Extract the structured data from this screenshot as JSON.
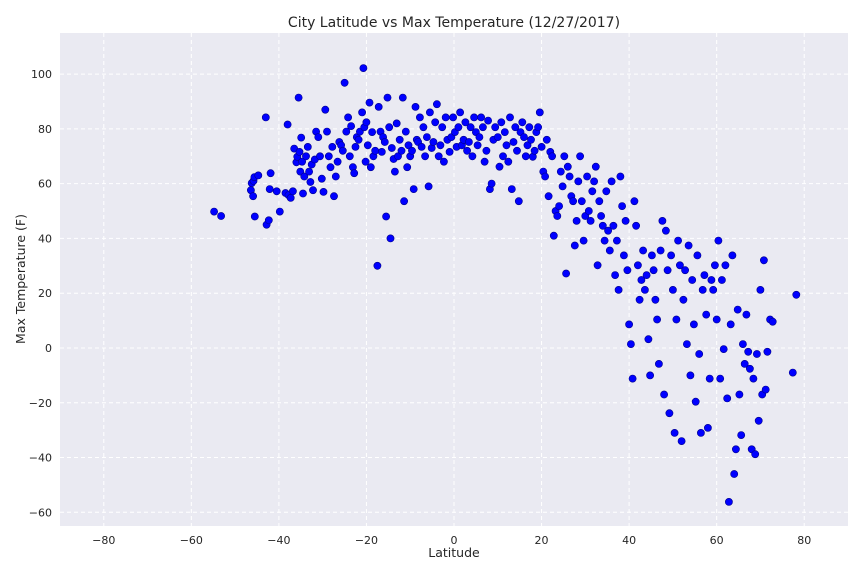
{
  "chart_data": {
    "type": "scatter",
    "title": "City Latitude vs Max Temperature (12/27/2017)",
    "xlabel": "Latitude",
    "ylabel": "Max Temperature (F)",
    "xlim": [
      -90,
      90
    ],
    "ylim": [
      -65,
      115
    ],
    "xticks": [
      -80,
      -60,
      -40,
      -20,
      0,
      20,
      40,
      60,
      80
    ],
    "yticks": [
      -60,
      -40,
      -20,
      0,
      20,
      40,
      60,
      80,
      100
    ],
    "grid": true,
    "colors": {
      "background": "#eaeaf2",
      "marker": "#0000ff",
      "marker_edge": "#00008b",
      "grid": "#ffffff"
    },
    "series": [
      {
        "points": [
          [
            -54.8,
            49.8
          ],
          [
            -53.2,
            48.2
          ],
          [
            -46.4,
            57.6
          ],
          [
            -46.2,
            60.2
          ],
          [
            -45.8,
            61.0
          ],
          [
            -45.6,
            62.4
          ],
          [
            -45.9,
            55.4
          ],
          [
            -45.5,
            48.0
          ],
          [
            -44.7,
            63.0
          ],
          [
            -43.0,
            84.2
          ],
          [
            -42.8,
            45.0
          ],
          [
            -42.3,
            46.6
          ],
          [
            -42.1,
            58.0
          ],
          [
            -41.9,
            63.8
          ],
          [
            -40.5,
            57.2
          ],
          [
            -39.8,
            49.8
          ],
          [
            -38.5,
            56.6
          ],
          [
            -38.0,
            81.6
          ],
          [
            -37.8,
            55.8
          ],
          [
            -37.3,
            54.8
          ],
          [
            -36.8,
            57.2
          ],
          [
            -36.5,
            72.8
          ],
          [
            -36.0,
            67.8
          ],
          [
            -35.8,
            69.8
          ],
          [
            -35.5,
            91.4
          ],
          [
            -35.3,
            71.6
          ],
          [
            -35.1,
            64.4
          ],
          [
            -34.9,
            76.8
          ],
          [
            -34.7,
            68.0
          ],
          [
            -34.5,
            56.4
          ],
          [
            -34.2,
            62.6
          ],
          [
            -33.8,
            70.0
          ],
          [
            -33.4,
            73.4
          ],
          [
            -33.1,
            64.4
          ],
          [
            -32.8,
            60.6
          ],
          [
            -32.5,
            67.0
          ],
          [
            -32.2,
            57.6
          ],
          [
            -31.8,
            68.8
          ],
          [
            -31.5,
            79.0
          ],
          [
            -31.0,
            77.0
          ],
          [
            -30.6,
            70.0
          ],
          [
            -30.2,
            61.8
          ],
          [
            -29.8,
            57.0
          ],
          [
            -29.4,
            87.0
          ],
          [
            -29.0,
            79.0
          ],
          [
            -28.6,
            70.0
          ],
          [
            -28.2,
            66.0
          ],
          [
            -27.8,
            73.4
          ],
          [
            -27.4,
            55.4
          ],
          [
            -27.0,
            62.6
          ],
          [
            -26.6,
            68.0
          ],
          [
            -26.2,
            75.2
          ],
          [
            -25.8,
            74.0
          ],
          [
            -25.4,
            72.0
          ],
          [
            -25.0,
            96.8
          ],
          [
            -24.6,
            79.0
          ],
          [
            -24.2,
            84.2
          ],
          [
            -23.8,
            70.0
          ],
          [
            -23.5,
            81.0
          ],
          [
            -23.1,
            66.0
          ],
          [
            -22.8,
            63.8
          ],
          [
            -22.5,
            73.4
          ],
          [
            -22.2,
            77.0
          ],
          [
            -21.8,
            76.0
          ],
          [
            -21.5,
            79.0
          ],
          [
            -21.0,
            86.0
          ],
          [
            -20.7,
            102.2
          ],
          [
            -20.5,
            80.6
          ],
          [
            -20.2,
            68.0
          ],
          [
            -20.0,
            82.4
          ],
          [
            -19.7,
            74.0
          ],
          [
            -19.3,
            89.6
          ],
          [
            -19.0,
            66.0
          ],
          [
            -18.7,
            78.8
          ],
          [
            -18.4,
            70.0
          ],
          [
            -18.0,
            72.0
          ],
          [
            -17.5,
            30.0
          ],
          [
            -17.2,
            88.0
          ],
          [
            -16.8,
            79.0
          ],
          [
            -16.5,
            71.6
          ],
          [
            -16.2,
            77.0
          ],
          [
            -15.8,
            75.2
          ],
          [
            -15.5,
            48.0
          ],
          [
            -15.2,
            91.4
          ],
          [
            -14.8,
            80.6
          ],
          [
            -14.5,
            40.0
          ],
          [
            -14.2,
            73.0
          ],
          [
            -13.8,
            69.0
          ],
          [
            -13.5,
            64.4
          ],
          [
            -13.1,
            82.0
          ],
          [
            -12.8,
            70.0
          ],
          [
            -12.4,
            76.0
          ],
          [
            -12.0,
            72.0
          ],
          [
            -11.7,
            91.4
          ],
          [
            -11.4,
            53.6
          ],
          [
            -11.0,
            79.0
          ],
          [
            -10.7,
            66.0
          ],
          [
            -10.4,
            74.0
          ],
          [
            -10.0,
            70.0
          ],
          [
            -9.6,
            72.0
          ],
          [
            -9.2,
            58.0
          ],
          [
            -8.8,
            88.0
          ],
          [
            -8.5,
            76.0
          ],
          [
            -8.2,
            75.2
          ],
          [
            -7.8,
            84.2
          ],
          [
            -7.4,
            73.4
          ],
          [
            -7.0,
            80.6
          ],
          [
            -6.6,
            70.0
          ],
          [
            -6.2,
            77.0
          ],
          [
            -5.8,
            59.0
          ],
          [
            -5.5,
            86.0
          ],
          [
            -5.1,
            73.0
          ],
          [
            -4.7,
            75.2
          ],
          [
            -4.3,
            82.4
          ],
          [
            -3.9,
            89.0
          ],
          [
            -3.5,
            70.0
          ],
          [
            -3.1,
            74.0
          ],
          [
            -2.7,
            80.6
          ],
          [
            -2.3,
            68.0
          ],
          [
            -1.9,
            84.2
          ],
          [
            -1.5,
            76.0
          ],
          [
            -1.0,
            71.6
          ],
          [
            -0.6,
            77.0
          ],
          [
            -0.2,
            84.2
          ],
          [
            0.2,
            78.8
          ],
          [
            0.6,
            73.4
          ],
          [
            1.0,
            80.6
          ],
          [
            1.4,
            86.0
          ],
          [
            1.8,
            74.0
          ],
          [
            2.2,
            76.0
          ],
          [
            2.6,
            82.4
          ],
          [
            3.0,
            72.0
          ],
          [
            3.4,
            75.2
          ],
          [
            3.8,
            80.6
          ],
          [
            4.2,
            70.0
          ],
          [
            4.6,
            84.2
          ],
          [
            5.0,
            78.8
          ],
          [
            5.4,
            74.0
          ],
          [
            5.8,
            77.0
          ],
          [
            6.2,
            84.2
          ],
          [
            6.6,
            80.6
          ],
          [
            7.0,
            68.0
          ],
          [
            7.4,
            72.0
          ],
          [
            7.8,
            83.0
          ],
          [
            8.2,
            58.0
          ],
          [
            8.6,
            60.0
          ],
          [
            9.0,
            76.0
          ],
          [
            9.4,
            80.6
          ],
          [
            10.0,
            77.0
          ],
          [
            10.4,
            66.2
          ],
          [
            10.8,
            82.4
          ],
          [
            11.2,
            70.0
          ],
          [
            11.6,
            78.8
          ],
          [
            12.0,
            74.0
          ],
          [
            12.4,
            68.0
          ],
          [
            12.8,
            84.2
          ],
          [
            13.2,
            58.0
          ],
          [
            13.6,
            75.2
          ],
          [
            14.0,
            80.6
          ],
          [
            14.4,
            72.0
          ],
          [
            14.8,
            53.6
          ],
          [
            15.2,
            78.8
          ],
          [
            15.6,
            82.4
          ],
          [
            16.0,
            77.0
          ],
          [
            16.4,
            70.0
          ],
          [
            16.8,
            74.0
          ],
          [
            17.2,
            80.6
          ],
          [
            17.6,
            76.0
          ],
          [
            18.0,
            69.8
          ],
          [
            18.4,
            72.0
          ],
          [
            18.8,
            78.8
          ],
          [
            19.2,
            80.6
          ],
          [
            19.6,
            86.0
          ],
          [
            20.0,
            73.4
          ],
          [
            20.4,
            64.4
          ],
          [
            20.8,
            62.6
          ],
          [
            21.2,
            76.0
          ],
          [
            21.6,
            55.4
          ],
          [
            22.0,
            71.6
          ],
          [
            22.4,
            70.0
          ],
          [
            22.8,
            41.0
          ],
          [
            23.2,
            50.0
          ],
          [
            23.6,
            48.2
          ],
          [
            24.0,
            51.8
          ],
          [
            24.4,
            64.4
          ],
          [
            24.8,
            59.0
          ],
          [
            25.2,
            70.0
          ],
          [
            25.6,
            27.2
          ],
          [
            26.0,
            66.2
          ],
          [
            26.4,
            62.6
          ],
          [
            26.8,
            55.4
          ],
          [
            27.2,
            53.6
          ],
          [
            27.6,
            37.4
          ],
          [
            28.0,
            46.4
          ],
          [
            28.4,
            60.8
          ],
          [
            28.8,
            70.0
          ],
          [
            29.2,
            53.6
          ],
          [
            29.6,
            39.2
          ],
          [
            30.0,
            48.2
          ],
          [
            30.4,
            62.6
          ],
          [
            30.8,
            50.0
          ],
          [
            31.2,
            46.4
          ],
          [
            31.6,
            57.2
          ],
          [
            32.0,
            60.8
          ],
          [
            32.4,
            66.2
          ],
          [
            32.8,
            30.2
          ],
          [
            33.2,
            53.6
          ],
          [
            33.6,
            48.2
          ],
          [
            34.0,
            44.6
          ],
          [
            34.4,
            39.2
          ],
          [
            34.8,
            57.2
          ],
          [
            35.2,
            42.8
          ],
          [
            35.6,
            35.6
          ],
          [
            36.0,
            60.8
          ],
          [
            36.4,
            44.6
          ],
          [
            36.8,
            26.6
          ],
          [
            37.2,
            39.2
          ],
          [
            37.6,
            21.2
          ],
          [
            38.0,
            62.6
          ],
          [
            38.4,
            51.8
          ],
          [
            38.8,
            33.8
          ],
          [
            39.2,
            46.4
          ],
          [
            39.6,
            28.4
          ],
          [
            40.0,
            8.6
          ],
          [
            40.4,
            1.4
          ],
          [
            40.8,
            -11.2
          ],
          [
            41.2,
            53.6
          ],
          [
            41.6,
            44.6
          ],
          [
            42.0,
            30.2
          ],
          [
            42.4,
            17.6
          ],
          [
            42.8,
            24.8
          ],
          [
            43.2,
            35.6
          ],
          [
            43.6,
            21.2
          ],
          [
            44.0,
            26.6
          ],
          [
            44.4,
            3.2
          ],
          [
            44.8,
            -10.0
          ],
          [
            45.2,
            33.8
          ],
          [
            45.6,
            28.4
          ],
          [
            46.0,
            17.6
          ],
          [
            46.4,
            10.4
          ],
          [
            46.8,
            -5.8
          ],
          [
            47.2,
            35.6
          ],
          [
            47.6,
            46.4
          ],
          [
            48.0,
            -17.0
          ],
          [
            48.4,
            42.8
          ],
          [
            48.8,
            28.4
          ],
          [
            49.2,
            -23.8
          ],
          [
            49.6,
            33.8
          ],
          [
            50.0,
            21.2
          ],
          [
            50.4,
            -31.0
          ],
          [
            50.8,
            10.4
          ],
          [
            51.2,
            39.2
          ],
          [
            51.6,
            30.2
          ],
          [
            52.0,
            -34.0
          ],
          [
            52.4,
            17.6
          ],
          [
            52.8,
            28.4
          ],
          [
            53.2,
            1.4
          ],
          [
            53.6,
            37.4
          ],
          [
            54.0,
            -10.0
          ],
          [
            54.4,
            24.8
          ],
          [
            54.8,
            8.6
          ],
          [
            55.2,
            -19.6
          ],
          [
            55.6,
            33.8
          ],
          [
            56.0,
            -2.2
          ],
          [
            56.4,
            -31.0
          ],
          [
            56.8,
            21.2
          ],
          [
            57.2,
            26.6
          ],
          [
            57.6,
            12.2
          ],
          [
            58.0,
            -29.2
          ],
          [
            58.4,
            -11.2
          ],
          [
            58.8,
            24.8
          ],
          [
            59.2,
            21.2
          ],
          [
            59.6,
            30.2
          ],
          [
            60.0,
            10.4
          ],
          [
            60.4,
            39.2
          ],
          [
            60.8,
            -11.2
          ],
          [
            61.2,
            24.8
          ],
          [
            61.6,
            -0.4
          ],
          [
            62.0,
            30.2
          ],
          [
            62.4,
            -18.4
          ],
          [
            62.8,
            -56.2
          ],
          [
            63.2,
            8.6
          ],
          [
            63.6,
            33.8
          ],
          [
            64.0,
            -46.0
          ],
          [
            64.4,
            -37.0
          ],
          [
            64.8,
            14.0
          ],
          [
            65.2,
            -17.0
          ],
          [
            65.6,
            -31.8
          ],
          [
            66.0,
            1.4
          ],
          [
            66.4,
            -5.8
          ],
          [
            66.8,
            12.2
          ],
          [
            67.2,
            -1.4
          ],
          [
            67.6,
            -7.6
          ],
          [
            68.0,
            -37.0
          ],
          [
            68.4,
            -11.2
          ],
          [
            68.8,
            -38.8
          ],
          [
            69.2,
            -2.2
          ],
          [
            69.6,
            -26.6
          ],
          [
            70.0,
            21.2
          ],
          [
            70.4,
            -17.0
          ],
          [
            70.8,
            32.0
          ],
          [
            71.2,
            -15.2
          ],
          [
            71.6,
            -1.4
          ],
          [
            72.2,
            10.4
          ],
          [
            72.8,
            9.6
          ],
          [
            77.4,
            -9.0
          ],
          [
            78.2,
            19.4
          ]
        ]
      }
    ]
  }
}
